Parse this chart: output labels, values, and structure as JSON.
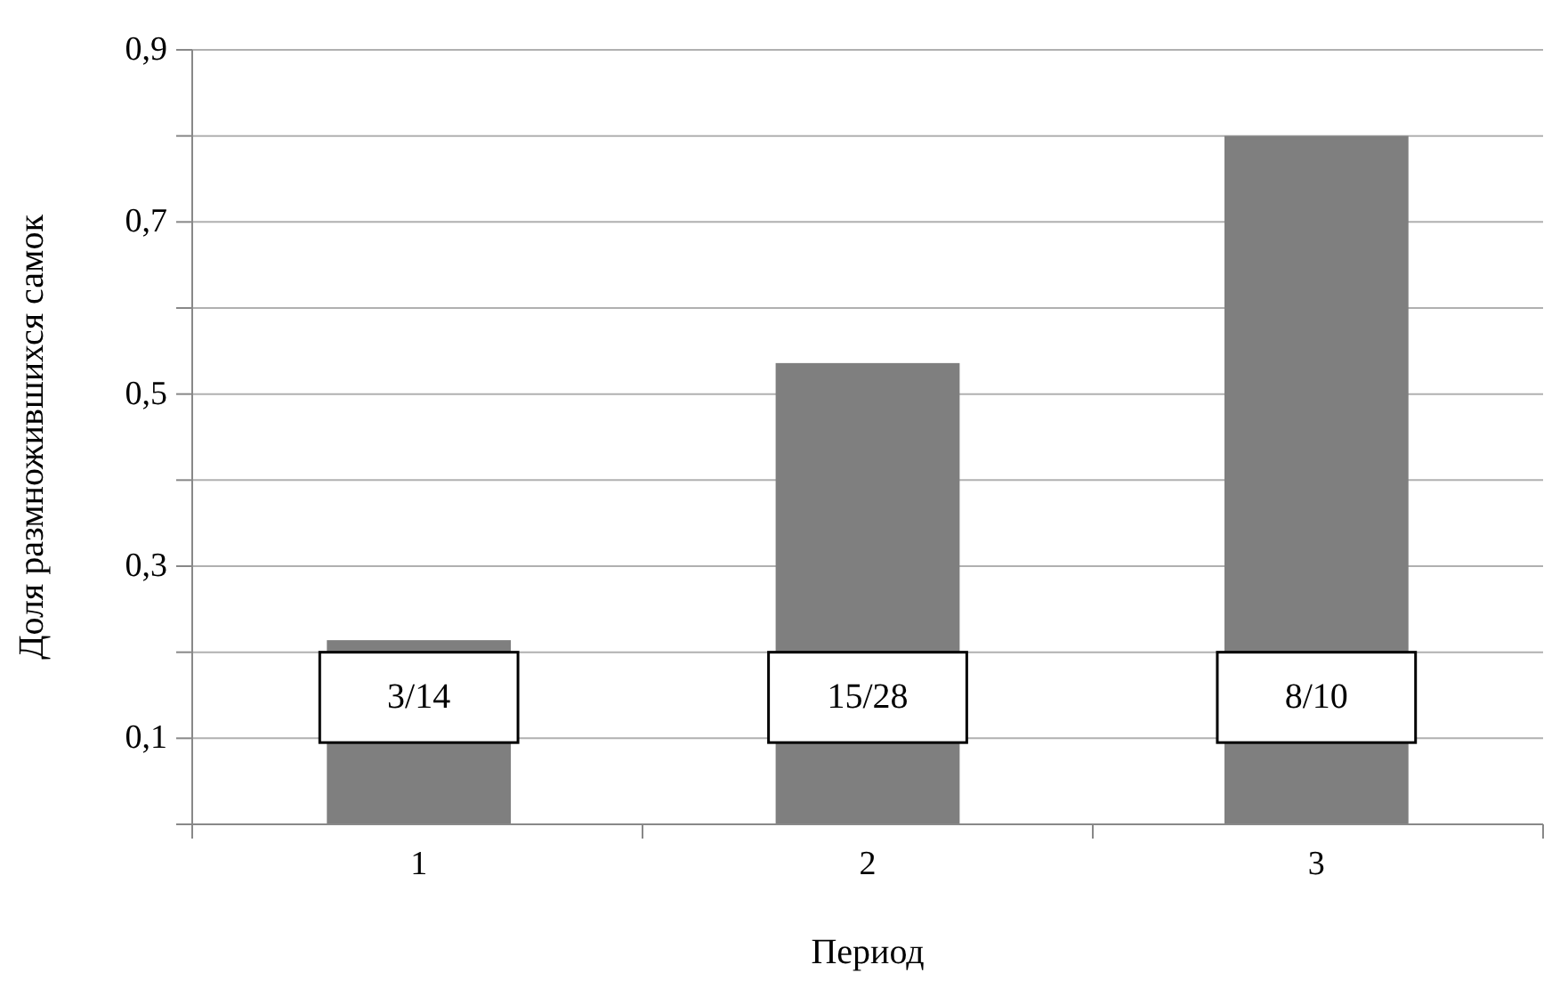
{
  "chart_data": {
    "type": "bar",
    "xlabel": "Период",
    "ylabel": "Доля размножившихся самок",
    "categories": [
      "1",
      "2",
      "3"
    ],
    "values": [
      0.214,
      0.536,
      0.8
    ],
    "color": "#7f7f7f",
    "value_labels": [
      "3/14",
      "15/28",
      "8/10"
    ],
    "ylim": [
      0,
      0.9
    ],
    "yticks": [
      {
        "value": 0,
        "label": null
      },
      {
        "value": 0.1,
        "label": "0,1"
      },
      {
        "value": 0.2,
        "label": null
      },
      {
        "value": 0.3,
        "label": "0,3"
      },
      {
        "value": 0.4,
        "label": null
      },
      {
        "value": 0.5,
        "label": "0,5"
      },
      {
        "value": 0.6,
        "label": null
      },
      {
        "value": 0.7,
        "label": "0,7"
      },
      {
        "value": 0.8,
        "label": null
      },
      {
        "value": 0.9,
        "label": "0,9"
      }
    ],
    "grid": "y"
  }
}
